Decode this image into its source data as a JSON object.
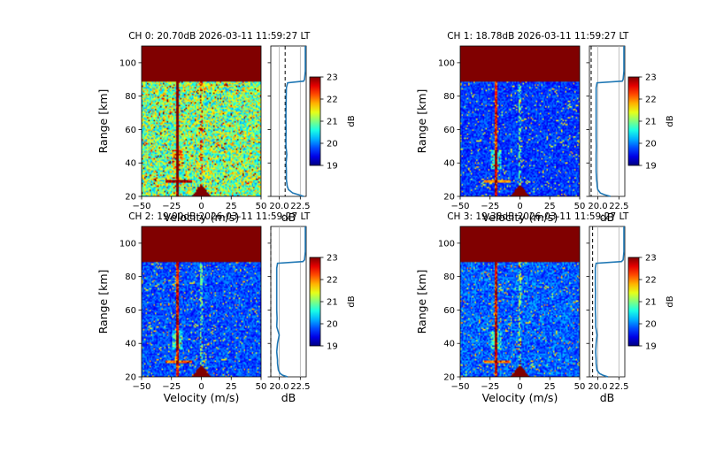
{
  "colorbar": {
    "min": 19,
    "max": 23,
    "ticks": [
      "19",
      "20",
      "21",
      "22",
      "23"
    ],
    "label": "dB"
  },
  "chart_data": [
    {
      "type": "heatmap",
      "title": "CH 0: 20.70dB 2026-03-11 11:59:27 LT",
      "xlabel": "Velocity (m/s)",
      "ylabel": "Range [km]",
      "xlim": [
        -50,
        50
      ],
      "ylim": [
        20,
        110
      ],
      "xticks": [
        "−50",
        "−25",
        "0",
        "25",
        "50"
      ],
      "yticks": [
        "20",
        "40",
        "60",
        "80",
        "100"
      ],
      "noise_level": 0.5,
      "profile": {
        "xlabel": "dB",
        "xlim": [
          19,
          23.2
        ],
        "xticks": [
          "20.0",
          "22.5"
        ],
        "mean_db": 20.7,
        "range_km": [
          20,
          21,
          22,
          24,
          26,
          28,
          30,
          35,
          40,
          45,
          50,
          55,
          60,
          65,
          70,
          75,
          80,
          85,
          88,
          89,
          90,
          95,
          100,
          105,
          110
        ],
        "db": [
          22.9,
          22.3,
          21.6,
          21.1,
          20.95,
          20.9,
          20.85,
          20.85,
          20.82,
          20.9,
          20.8,
          20.8,
          20.82,
          20.8,
          20.8,
          20.82,
          20.83,
          20.85,
          21.0,
          22.9,
          23.0,
          23.1,
          23.1,
          23.1,
          23.1
        ]
      }
    },
    {
      "type": "heatmap",
      "title": "CH 1: 18.78dB 2026-03-11 11:59:27 LT",
      "xlabel": "Velocity (m/s)",
      "ylabel": "Range [km]",
      "xlim": [
        -50,
        50
      ],
      "ylim": [
        20,
        110
      ],
      "xticks": [
        "−50",
        "−25",
        "0",
        "25",
        "50"
      ],
      "yticks": [
        "20",
        "40",
        "60",
        "80",
        "100"
      ],
      "noise_level": 0.18,
      "profile": {
        "xlabel": "dB",
        "xlim": [
          19,
          23.2
        ],
        "xticks": [
          "20.0",
          "22.5"
        ],
        "mean_db": 18.78,
        "range_km": [
          20,
          21,
          22,
          24,
          26,
          28,
          30,
          35,
          40,
          45,
          50,
          55,
          60,
          65,
          70,
          75,
          80,
          85,
          88,
          89,
          90,
          95,
          100,
          105,
          110
        ],
        "db": [
          21.5,
          20.8,
          20.3,
          20.0,
          19.92,
          19.9,
          19.85,
          19.8,
          19.8,
          19.8,
          19.82,
          19.8,
          19.8,
          19.8,
          19.8,
          19.8,
          19.8,
          19.8,
          19.9,
          22.9,
          23.0,
          23.1,
          23.1,
          23.1,
          23.1
        ]
      }
    },
    {
      "type": "heatmap",
      "title": "CH 2: 19.00dB 2026-03-11 11:59:27 LT",
      "xlabel": "Velocity (m/s)",
      "ylabel": "Range [km]",
      "xlim": [
        -50,
        50
      ],
      "ylim": [
        20,
        110
      ],
      "xticks": [
        "−50",
        "−25",
        "0",
        "25",
        "50"
      ],
      "yticks": [
        "20",
        "40",
        "60",
        "80",
        "100"
      ],
      "noise_level": 0.2,
      "profile": {
        "xlabel": "dB",
        "xlim": [
          19,
          23.2
        ],
        "xticks": [
          "20.0",
          "22.5"
        ],
        "mean_db": 19.0,
        "range_km": [
          20,
          21,
          22,
          24,
          26,
          28,
          30,
          35,
          40,
          45,
          50,
          55,
          60,
          65,
          70,
          75,
          80,
          85,
          88,
          89,
          90,
          95,
          100,
          105,
          110
        ],
        "db": [
          21.0,
          20.4,
          20.1,
          19.9,
          19.85,
          19.8,
          19.8,
          19.7,
          19.8,
          20.0,
          19.7,
          19.75,
          19.7,
          19.7,
          19.7,
          19.7,
          19.7,
          19.7,
          19.8,
          22.8,
          23.0,
          23.1,
          23.1,
          23.1,
          23.1
        ]
      }
    },
    {
      "type": "heatmap",
      "title": "CH 3: 19.38dB 2026-03-11 11:59:27 LT",
      "xlabel": "Velocity (m/s)",
      "ylabel": "Range [km]",
      "xlim": [
        -50,
        50
      ],
      "ylim": [
        20,
        110
      ],
      "xticks": [
        "−50",
        "−25",
        "0",
        "25",
        "50"
      ],
      "yticks": [
        "20",
        "40",
        "60",
        "80",
        "100"
      ],
      "noise_level": 0.22,
      "profile": {
        "xlabel": "dB",
        "xlim": [
          19,
          23.2
        ],
        "xticks": [
          "20.0",
          "22.5"
        ],
        "mean_db": 19.38,
        "range_km": [
          20,
          21,
          22,
          24,
          26,
          28,
          30,
          35,
          40,
          45,
          50,
          55,
          60,
          65,
          70,
          75,
          80,
          85,
          88,
          89,
          90,
          95,
          100,
          105,
          110
        ],
        "db": [
          21.2,
          20.6,
          20.2,
          19.9,
          19.85,
          19.8,
          19.8,
          19.75,
          19.8,
          19.9,
          19.75,
          19.75,
          19.7,
          19.7,
          19.72,
          19.7,
          19.7,
          19.7,
          19.8,
          22.8,
          23.0,
          23.1,
          23.1,
          23.1,
          23.1
        ]
      }
    }
  ]
}
